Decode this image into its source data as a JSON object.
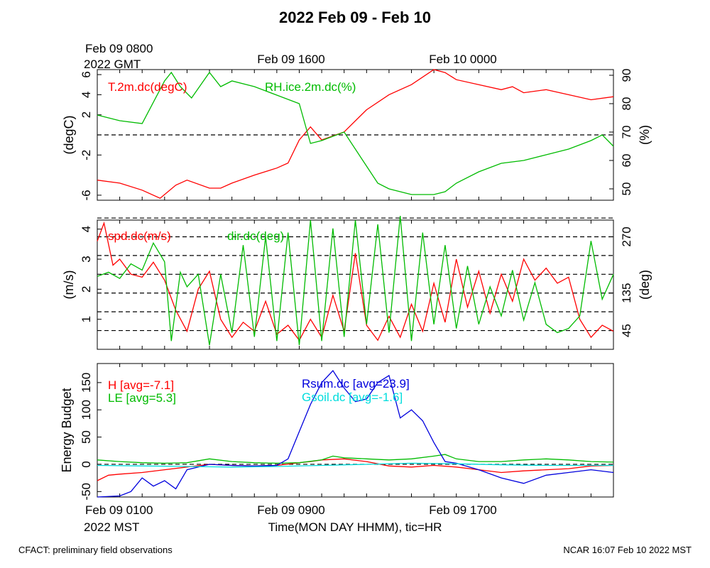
{
  "title": "2022 Feb 09 - Feb 10",
  "colors": {
    "red": "#ff0000",
    "green": "#00bb00",
    "blue": "#0000dd",
    "cyan": "#00dddd",
    "axis": "#000000"
  },
  "top_time_labels": {
    "gmt_date": "Feb 09 0800",
    "gmt_year": "2022 GMT",
    "gmt_mid1": "Feb 09 1600",
    "gmt_mid2": "Feb 10 0000"
  },
  "bottom_time_labels": {
    "mst_date": "Feb 09 0100",
    "mst_year": "2022 MST",
    "mst_mid1": "Feb 09 0900",
    "mst_mid2": "Feb 09 1700",
    "xlabel": "Time(MON DAY HHMM), tic=HR"
  },
  "footer": {
    "left": "CFACT: preliminary field observations",
    "right": "NCAR 16:07 Feb 10 2022 MST"
  },
  "chart_data": [
    {
      "type": "line",
      "panel": "temperature-rh",
      "x_unit": "hours since Feb 09 0100 MST",
      "xlim": [
        0,
        23
      ],
      "y_left": {
        "label": "(degC)",
        "ticks": [
          "6",
          "4",
          "2",
          "-2",
          "-6"
        ],
        "tick_values": [
          6,
          4,
          2,
          -2,
          -6
        ],
        "ylim": [
          -6.5,
          6.5
        ]
      },
      "y_right": {
        "label": "(%)",
        "ticks": [
          "90",
          "80",
          "70",
          "60",
          "50"
        ],
        "tick_values": [
          90,
          80,
          70,
          60,
          50
        ],
        "ylim": [
          46,
          92
        ]
      },
      "reference_lines_left": [
        0
      ],
      "series": [
        {
          "name": "T.2m.dc(degC)",
          "axis": "left",
          "color": "#ff0000",
          "x": [
            0,
            1,
            2,
            2.8,
            3.5,
            4,
            5,
            5.5,
            6,
            7,
            8,
            8.5,
            9,
            9.5,
            10,
            11,
            12,
            13,
            14,
            15,
            15.5,
            16,
            17,
            18,
            18.5,
            19,
            20,
            21,
            22,
            23
          ],
          "y": [
            -4.5,
            -4.8,
            -5.5,
            -6.3,
            -5.0,
            -4.5,
            -5.3,
            -5.3,
            -4.8,
            -4.0,
            -3.3,
            -2.8,
            -0.5,
            0.8,
            -0.5,
            0.3,
            2.5,
            4.0,
            5.0,
            6.5,
            6.2,
            5.5,
            5.0,
            4.5,
            4.8,
            4.2,
            4.5,
            4.0,
            3.5,
            3.8
          ]
        },
        {
          "name": "RH.ice.2m.dc(%)",
          "axis": "right",
          "color": "#00bb00",
          "x": [
            0,
            1,
            2,
            3,
            3.3,
            3.7,
            4.2,
            5,
            5.5,
            6,
            7,
            8,
            9,
            9.5,
            10,
            11,
            12,
            12.5,
            13,
            14,
            15,
            15.5,
            16,
            17,
            18,
            19,
            20,
            21,
            22,
            22.5,
            23
          ],
          "y": [
            76,
            74,
            73,
            88,
            91,
            86,
            82,
            91,
            86,
            88,
            86,
            83,
            80,
            66,
            67,
            70,
            58,
            52,
            50,
            48,
            48,
            49,
            52,
            56,
            59,
            60,
            62,
            64,
            67,
            69,
            65
          ]
        }
      ]
    },
    {
      "type": "line",
      "panel": "wind",
      "x_unit": "hours since Feb 09 0100 MST",
      "xlim": [
        0,
        23
      ],
      "y_left": {
        "label": "(m/s)",
        "ticks": [
          "4",
          "3",
          "2",
          "1"
        ],
        "tick_values": [
          4,
          3,
          2,
          1
        ],
        "ylim": [
          0,
          4.3
        ]
      },
      "y_right": {
        "label": "(deg)",
        "ticks": [
          "270",
          "135",
          "45"
        ],
        "tick_values": [
          270,
          135,
          45
        ],
        "ylim": [
          0,
          310
        ]
      },
      "reference_lines_right": [
        45,
        90,
        135,
        180,
        225,
        270,
        315
      ],
      "series": [
        {
          "name": "spd.dc(m/s)",
          "axis": "left",
          "color": "#ff0000",
          "x": [
            0,
            0.3,
            0.7,
            1,
            1.5,
            2,
            2.5,
            3,
            3.5,
            4,
            4.5,
            5,
            5.5,
            6,
            6.5,
            7,
            7.5,
            8,
            8.5,
            9,
            9.5,
            10,
            10.5,
            11,
            11.5,
            12,
            12.5,
            13,
            13.5,
            14,
            14.5,
            15,
            15.5,
            16,
            16.5,
            17,
            17.5,
            18,
            18.5,
            19,
            19.5,
            20,
            20.5,
            21,
            21.5,
            22,
            22.5,
            23
          ],
          "y": [
            3.6,
            4.2,
            2.8,
            3.0,
            2.5,
            2.4,
            2.9,
            2.3,
            1.3,
            0.6,
            2.0,
            2.6,
            1.0,
            0.4,
            0.9,
            0.6,
            1.6,
            0.5,
            0.8,
            0.3,
            1.0,
            0.4,
            1.8,
            0.6,
            3.2,
            0.8,
            0.3,
            1.1,
            0.4,
            1.5,
            0.6,
            2.2,
            0.9,
            3.0,
            1.4,
            2.6,
            1.2,
            2.5,
            1.6,
            3.0,
            2.3,
            2.7,
            2.2,
            2.4,
            1.0,
            0.4,
            0.8,
            0.6
          ]
        },
        {
          "name": "dir.dc(deg)",
          "axis": "right",
          "color": "#00bb00",
          "x": [
            0,
            0.5,
            1,
            1.5,
            2,
            2.5,
            3,
            3.3,
            3.7,
            4,
            4.5,
            5,
            5.5,
            6,
            6.5,
            7,
            7.5,
            8,
            8.5,
            9,
            9.5,
            10,
            10.5,
            11,
            11.5,
            12,
            12.5,
            13,
            13.5,
            14,
            14.5,
            15,
            15.5,
            16,
            16.5,
            17,
            17.5,
            18,
            18.5,
            19,
            19.5,
            20,
            20.5,
            21,
            21.5,
            22,
            22.5,
            23
          ],
          "y": [
            175,
            185,
            170,
            205,
            190,
            255,
            210,
            20,
            185,
            150,
            180,
            10,
            180,
            40,
            250,
            30,
            270,
            20,
            280,
            10,
            310,
            20,
            290,
            30,
            310,
            60,
            300,
            40,
            320,
            20,
            280,
            60,
            250,
            50,
            200,
            60,
            150,
            80,
            190,
            70,
            160,
            60,
            40,
            50,
            80,
            260,
            120,
            180
          ]
        }
      ]
    },
    {
      "type": "line",
      "panel": "energy-budget",
      "x_unit": "hours since Feb 09 0100 MST",
      "xlim": [
        0,
        23
      ],
      "y_left": {
        "label": "Energy Budget",
        "ticks": [
          "150",
          "100",
          "50",
          "0",
          "-50"
        ],
        "tick_values": [
          150,
          100,
          50,
          0,
          -50
        ],
        "ylim": [
          -60,
          185
        ]
      },
      "reference_lines_left": [
        0
      ],
      "series": [
        {
          "name": "H [avg=-7.1]",
          "color": "#ff0000",
          "x": [
            0,
            0.5,
            1,
            2,
            3,
            4,
            5,
            6,
            7,
            8,
            9,
            9.5,
            10,
            11,
            12,
            13,
            14,
            15,
            16,
            17,
            18,
            19,
            20,
            21,
            22,
            23
          ],
          "y": [
            -30,
            -20,
            -18,
            -15,
            -10,
            -5,
            0,
            -2,
            -3,
            -2,
            3,
            5,
            8,
            10,
            5,
            -3,
            -5,
            -2,
            -5,
            -10,
            -15,
            -12,
            -10,
            -8,
            -3,
            -2
          ]
        },
        {
          "name": "LE [avg=5.3]",
          "color": "#00bb00",
          "x": [
            0,
            1,
            2,
            3,
            4,
            5,
            6,
            7,
            8,
            9,
            10,
            10.5,
            11,
            12,
            13,
            14,
            15,
            15.5,
            16,
            17,
            18,
            19,
            20,
            21,
            22,
            23
          ],
          "y": [
            8,
            5,
            3,
            2,
            3,
            10,
            5,
            3,
            2,
            3,
            8,
            15,
            12,
            10,
            8,
            10,
            15,
            18,
            10,
            5,
            5,
            8,
            10,
            8,
            5,
            4
          ]
        },
        {
          "name": "Rsum.dc [avg=23.9]",
          "color": "#0000dd",
          "x": [
            0,
            1,
            1.5,
            2,
            2.5,
            3,
            3.5,
            4,
            5,
            6,
            7,
            8,
            8.5,
            9,
            9.5,
            10,
            10.5,
            11,
            11.5,
            12,
            12.5,
            13,
            13.5,
            14,
            14.5,
            15,
            15.5,
            16,
            17,
            18,
            19,
            20,
            21,
            22,
            23
          ],
          "y": [
            -60,
            -58,
            -50,
            -25,
            -40,
            -30,
            -45,
            -10,
            0,
            -2,
            -3,
            -2,
            10,
            60,
            110,
            150,
            172,
            140,
            115,
            120,
            150,
            163,
            85,
            100,
            80,
            40,
            5,
            2,
            -10,
            -25,
            -35,
            -20,
            -15,
            -10,
            -15
          ]
        },
        {
          "name": "Gsoil.dc [avg=-1.6]",
          "color": "#00dddd",
          "x": [
            0,
            2,
            4,
            6,
            8,
            10,
            12,
            14,
            16,
            18,
            20,
            22,
            23
          ],
          "y": [
            -2,
            -3,
            -4,
            -5,
            -4,
            -2,
            0,
            2,
            1,
            -1,
            -2,
            -2,
            -2
          ]
        }
      ]
    }
  ]
}
